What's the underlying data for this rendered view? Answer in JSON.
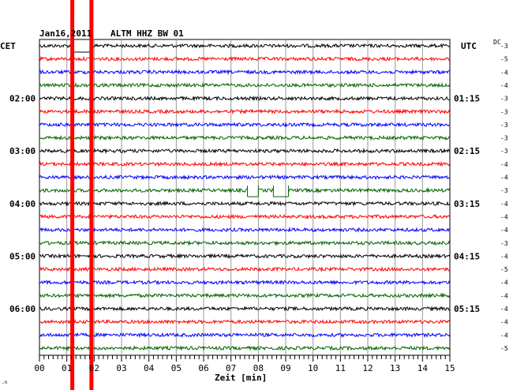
{
  "header": {
    "date": "Jan16,2011",
    "station": "ALTM HHZ BW 01",
    "left_tz": "CET",
    "right_tz": "UTC",
    "dc_label": "DC"
  },
  "chart_data": {
    "type": "line",
    "xlabel": "Zeit [min]",
    "xlim": [
      0,
      15
    ],
    "x_ticks": [
      "00",
      "01",
      "02",
      "03",
      "04",
      "05",
      "06",
      "07",
      "08",
      "09",
      "10",
      "11",
      "12",
      "13",
      "14",
      "15"
    ],
    "left_hour_labels": [
      {
        "trace": 4,
        "label": "02:00"
      },
      {
        "trace": 8,
        "label": "03:00"
      },
      {
        "trace": 12,
        "label": "04:00"
      },
      {
        "trace": 16,
        "label": "05:00"
      },
      {
        "trace": 20,
        "label": "06:00"
      }
    ],
    "right_hour_labels": [
      {
        "trace": 4,
        "label": "01:15"
      },
      {
        "trace": 8,
        "label": "02:15"
      },
      {
        "trace": 12,
        "label": "03:15"
      },
      {
        "trace": 16,
        "label": "04:15"
      },
      {
        "trace": 20,
        "label": "05:15"
      }
    ],
    "dc_offsets": [
      -3,
      -5,
      -4,
      -4,
      -3,
      -3,
      -3,
      -3,
      -3,
      -4,
      -4,
      -3,
      -4,
      -4,
      -4,
      -3,
      -4,
      -5,
      -4,
      -4,
      -4,
      -4,
      -4,
      -5
    ],
    "trace_colors": [
      "#000000",
      "#ff0000",
      "#0000ff",
      "#006400"
    ],
    "marker_lines": {
      "color": "#ff0000",
      "x_minutes": [
        1.2,
        1.9
      ]
    },
    "gaps": [
      {
        "trace": 0,
        "from": 1.2,
        "to": 1.9
      },
      {
        "trace": 11,
        "from": 7.6,
        "to": 8.0
      },
      {
        "trace": 11,
        "from": 8.55,
        "to": 9.1
      }
    ]
  }
}
